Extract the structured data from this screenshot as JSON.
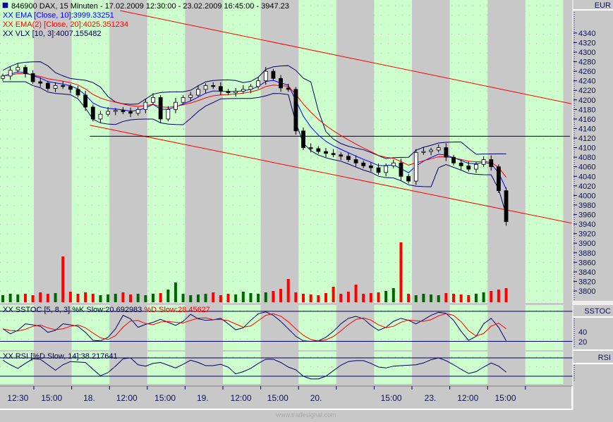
{
  "header": {
    "title": "846900  DAX, 15 Minuten - 17.02.2009 12:30:00 - 23.02.2009 16:45:00 - 3947.23",
    "ema10": "XX EMA [Close, 10]:3999.33251",
    "ema20": "XX EMA(2) [Close, 20]:4025.351234",
    "vlx": "XX VLX [10, 3]:4007.155482"
  },
  "sstoc": {
    "label_k": "XX SSTOC [5, 8, 3] %K Slow:20.692983 ",
    "label_d": "%D Slow:28.45627",
    "axis_title": "SSTOC",
    "ticks": [
      "40",
      "20"
    ]
  },
  "rsi": {
    "label": "XX RSI [%D Slow, 14]:38.217641",
    "axis_title": "RSI"
  },
  "axis": {
    "currency": "EUR"
  },
  "watermark": "www.tradesignal.com",
  "colors": {
    "green_stripe": "#ccffcc",
    "gray": "#c8c8c8",
    "ema10": "#0000ff",
    "ema20": "#ff0000",
    "vlx": "#000066",
    "vol_up": "#006600",
    "vol_down": "#ff0000"
  },
  "chart_data": {
    "type": "candlestick",
    "title": "846900 DAX, 15 Minuten",
    "ylabel": "EUR",
    "ylim": [
      3780,
      4380
    ],
    "yticks": [
      4340,
      4320,
      4300,
      4280,
      4260,
      4240,
      4220,
      4200,
      4180,
      4160,
      4140,
      4120,
      4100,
      4080,
      4060,
      4040,
      4020,
      4000,
      3980,
      3960,
      3940,
      3920,
      3900,
      3880,
      3860,
      3840,
      3820,
      3800
    ],
    "xticks": [
      {
        "bar": 2,
        "label": "12:30"
      },
      {
        "bar": 6.5,
        "label": "15:00"
      },
      {
        "bar": 11.5,
        "label": "18."
      },
      {
        "bar": 16.5,
        "label": "12:00"
      },
      {
        "bar": 21.6,
        "label": "15:00"
      },
      {
        "bar": 26.6,
        "label": "19."
      },
      {
        "bar": 31.7,
        "label": "12:00"
      },
      {
        "bar": 36.6,
        "label": "15:00"
      },
      {
        "bar": 41.7,
        "label": "20."
      },
      {
        "bar": 51.7,
        "label": "15:00"
      },
      {
        "bar": 56.9,
        "label": "23."
      },
      {
        "bar": 61.9,
        "label": "12:00"
      },
      {
        "bar": 66.9,
        "label": "15:00"
      }
    ],
    "close": [
      4250,
      4262,
      4268,
      4255,
      4238,
      4235,
      4224,
      4230,
      4228,
      4222,
      4210,
      4185,
      4160,
      4170,
      4176,
      4178,
      4175,
      4172,
      4180,
      4195,
      4205,
      4160,
      4180,
      4195,
      4205,
      4210,
      4222,
      4230,
      4228,
      4218,
      4215,
      4218,
      4222,
      4228,
      4240,
      4260,
      4245,
      4225,
      4222,
      4135,
      4100,
      4098,
      4092,
      4088,
      4085,
      4082,
      4075,
      4068,
      4062,
      4058,
      4048,
      4062,
      4068,
      4040,
      4030,
      4090,
      4092,
      4095,
      4100,
      4080,
      4068,
      4062,
      4055,
      4065,
      4075,
      4060,
      4010,
      3945
    ],
    "first_open": 4245,
    "volume": [
      10,
      12,
      11,
      12,
      10,
      14,
      12,
      13,
      65,
      15,
      12,
      14,
      12,
      10,
      11,
      12,
      14,
      11,
      12,
      10,
      12,
      13,
      18,
      28,
      12,
      10,
      11,
      12,
      14,
      10,
      12,
      11,
      15,
      13,
      12,
      14,
      16,
      19,
      33,
      14,
      12,
      11,
      10,
      13,
      22,
      12,
      15,
      25,
      12,
      13,
      14,
      16,
      20,
      85,
      12,
      10,
      12,
      11,
      10,
      13,
      12,
      11,
      10,
      12,
      14,
      16,
      18,
      20
    ],
    "sstoc_k": [
      45,
      35,
      42,
      55,
      53,
      50,
      38,
      42,
      55,
      53,
      50,
      38,
      22,
      21,
      28,
      45,
      72,
      65,
      48,
      54,
      58,
      64,
      58,
      52,
      60,
      74,
      65,
      62,
      63,
      66,
      55,
      43,
      47,
      62,
      75,
      79,
      72,
      60,
      45,
      30,
      21,
      20,
      21,
      28,
      40,
      55,
      66,
      70,
      65,
      52,
      42,
      48,
      60,
      66,
      62,
      55,
      63,
      72,
      78,
      76,
      62,
      40,
      22,
      30,
      55,
      66,
      48,
      21
    ],
    "sstoc_levels": [
      80,
      20
    ],
    "rsi": [
      65,
      55,
      47,
      58,
      68,
      67,
      55,
      43,
      55,
      62,
      61,
      60,
      45,
      31,
      38,
      52,
      68,
      70,
      55,
      52,
      58,
      60,
      54,
      48,
      56,
      65,
      60,
      53,
      53,
      56,
      50,
      35,
      40,
      47,
      58,
      67,
      67,
      60,
      50,
      44,
      30,
      24,
      24,
      30,
      42,
      54,
      62,
      64,
      64,
      58,
      50,
      48,
      52,
      53,
      54,
      55,
      59,
      66,
      70,
      64,
      55,
      45,
      36,
      40,
      50,
      59,
      52,
      39
    ],
    "rsi_levels": [
      70,
      30
    ],
    "upper_channel": [
      [
        15.6,
        4387
      ],
      [
        75.7,
        4192
      ]
    ],
    "lower_channel": [
      [
        11.6,
        4147
      ],
      [
        75.7,
        3942
      ]
    ],
    "horizontal_line": {
      "from_bar": 11.6,
      "price": 4124
    }
  }
}
